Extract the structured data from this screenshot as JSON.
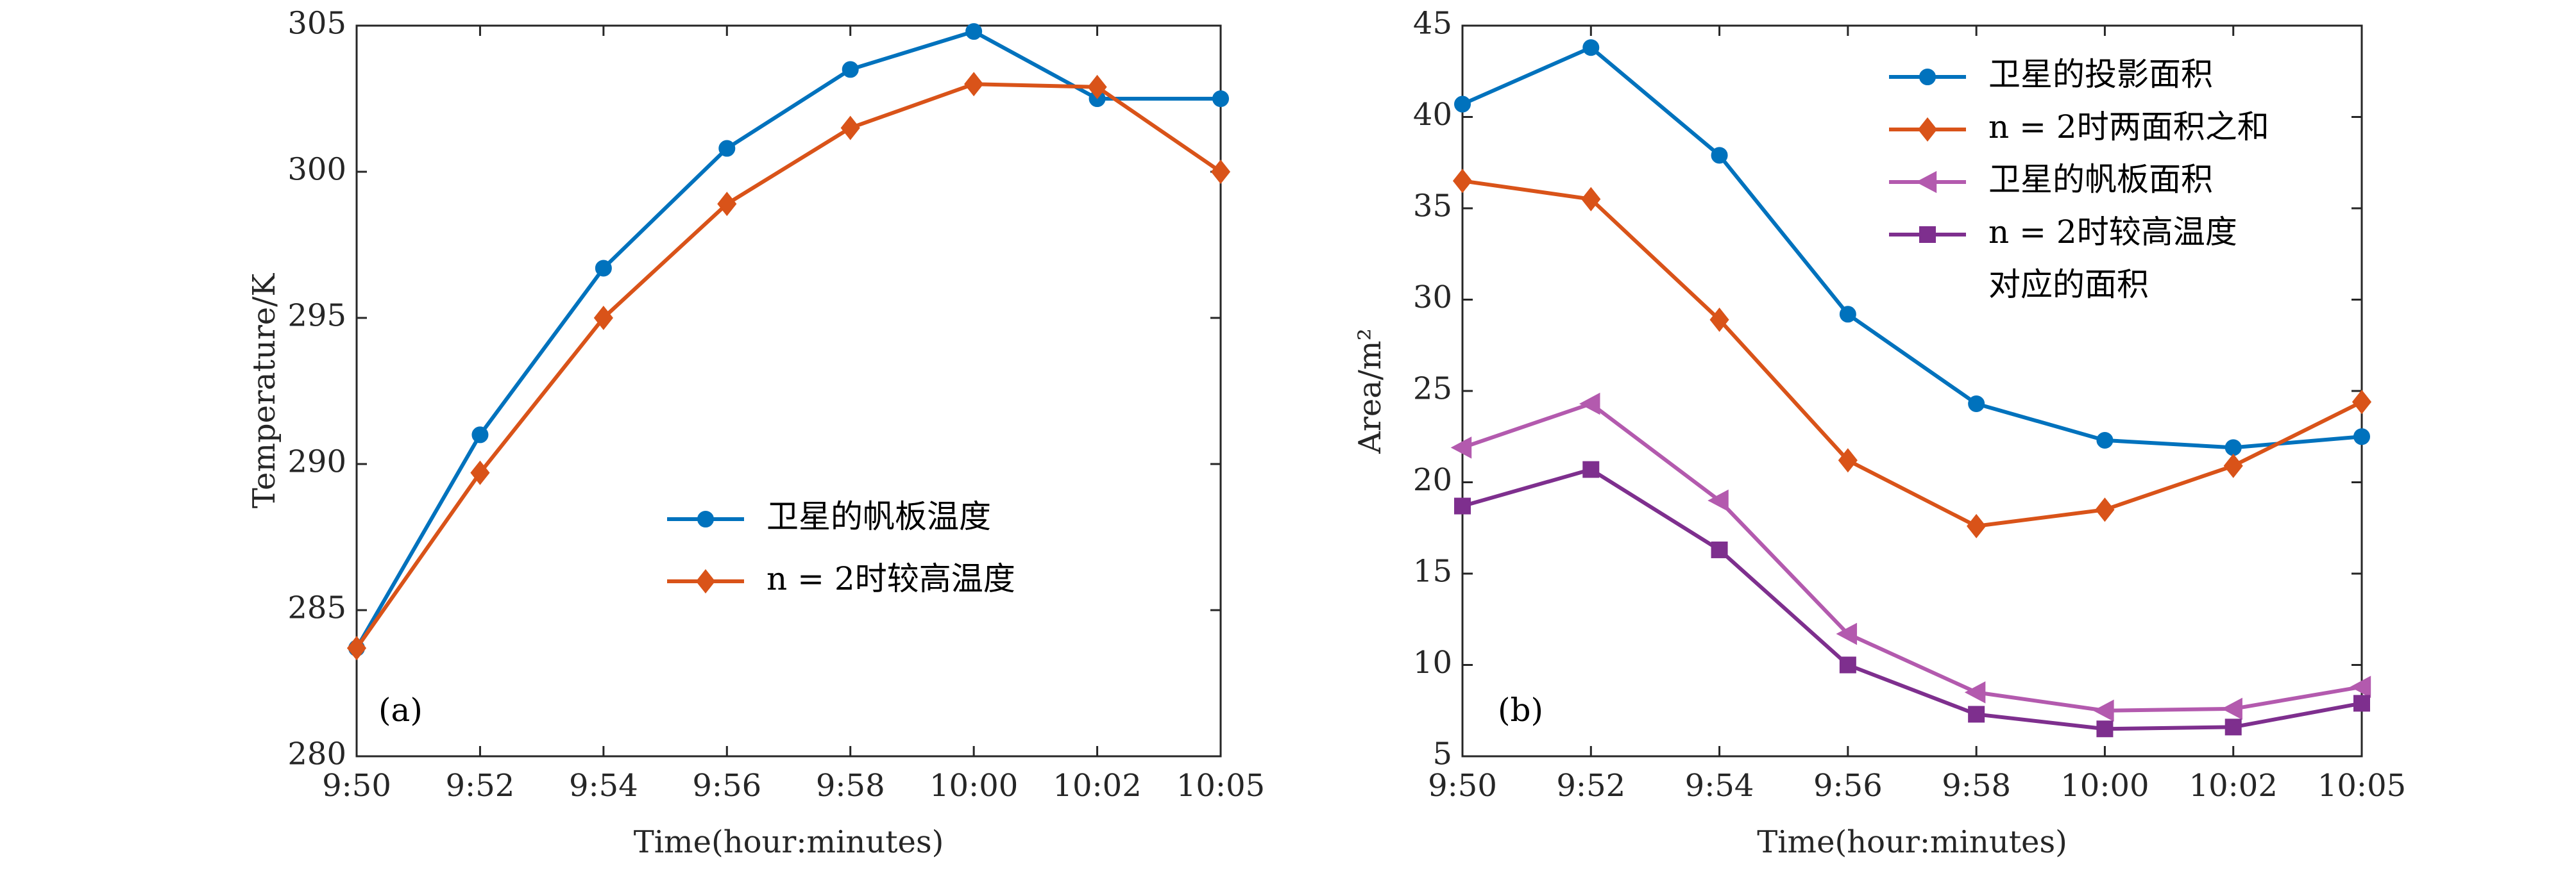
{
  "chart_data": [
    {
      "type": "line",
      "panel_label": "(a)",
      "categories": [
        "9:50",
        "9:52",
        "9:54",
        "9:56",
        "9:58",
        "10:00",
        "10:02",
        "10:05"
      ],
      "xlabel": "Time(hour:minutes)",
      "ylabel": "Temperature/K",
      "ylim": [
        280,
        305
      ],
      "yticks": [
        280,
        285,
        290,
        295,
        300,
        305
      ],
      "grid": false,
      "legend_position": "center-right",
      "series": [
        {
          "name": "卫星的帆板温度",
          "color": "#0072BD",
          "marker": "circle",
          "values": [
            283.7,
            291.0,
            296.7,
            300.8,
            303.5,
            304.8,
            302.5,
            302.5
          ]
        },
        {
          "name": "n = 2时较高温度",
          "color": "#D95319",
          "marker": "diamond",
          "values": [
            283.7,
            289.7,
            295.0,
            298.9,
            301.5,
            303.0,
            302.9,
            300.0
          ]
        }
      ]
    },
    {
      "type": "line",
      "panel_label": "(b)",
      "categories": [
        "9:50",
        "9:52",
        "9:54",
        "9:56",
        "9:58",
        "10:00",
        "10:02",
        "10:05"
      ],
      "xlabel": "Time(hour:minutes)",
      "ylabel": "Area/m²",
      "ylim": [
        5,
        45
      ],
      "yticks": [
        5,
        10,
        15,
        20,
        25,
        30,
        35,
        40,
        45
      ],
      "grid": false,
      "legend_position": "top-right",
      "series": [
        {
          "name": "卫星的投影面积",
          "color": "#0072BD",
          "marker": "circle",
          "values": [
            40.7,
            43.8,
            37.9,
            29.2,
            24.3,
            22.3,
            21.9,
            22.5
          ]
        },
        {
          "name": "n = 2时两面积之和",
          "color": "#D95319",
          "marker": "diamond",
          "values": [
            36.5,
            35.5,
            28.9,
            21.2,
            17.6,
            18.5,
            20.9,
            24.4
          ]
        },
        {
          "name": "卫星的帆板面积",
          "color": "#B35AAE",
          "marker": "triangle-left",
          "values": [
            21.9,
            24.3,
            19.0,
            11.7,
            8.5,
            7.5,
            7.6,
            8.8
          ]
        },
        {
          "name": "n = 2时较高温度对应的面积",
          "color": "#7E2F8E",
          "marker": "square",
          "values": [
            18.7,
            20.7,
            16.3,
            10.0,
            7.3,
            6.5,
            6.6,
            7.9
          ]
        }
      ]
    }
  ],
  "legend_display": [
    [
      "卫星的帆板温度",
      "n = 2时较高温度"
    ],
    [
      "卫星的投影面积",
      "n = 2时两面积之和",
      "卫星的帆板面积",
      "n = 2时较高温度",
      "对应的面积"
    ]
  ]
}
